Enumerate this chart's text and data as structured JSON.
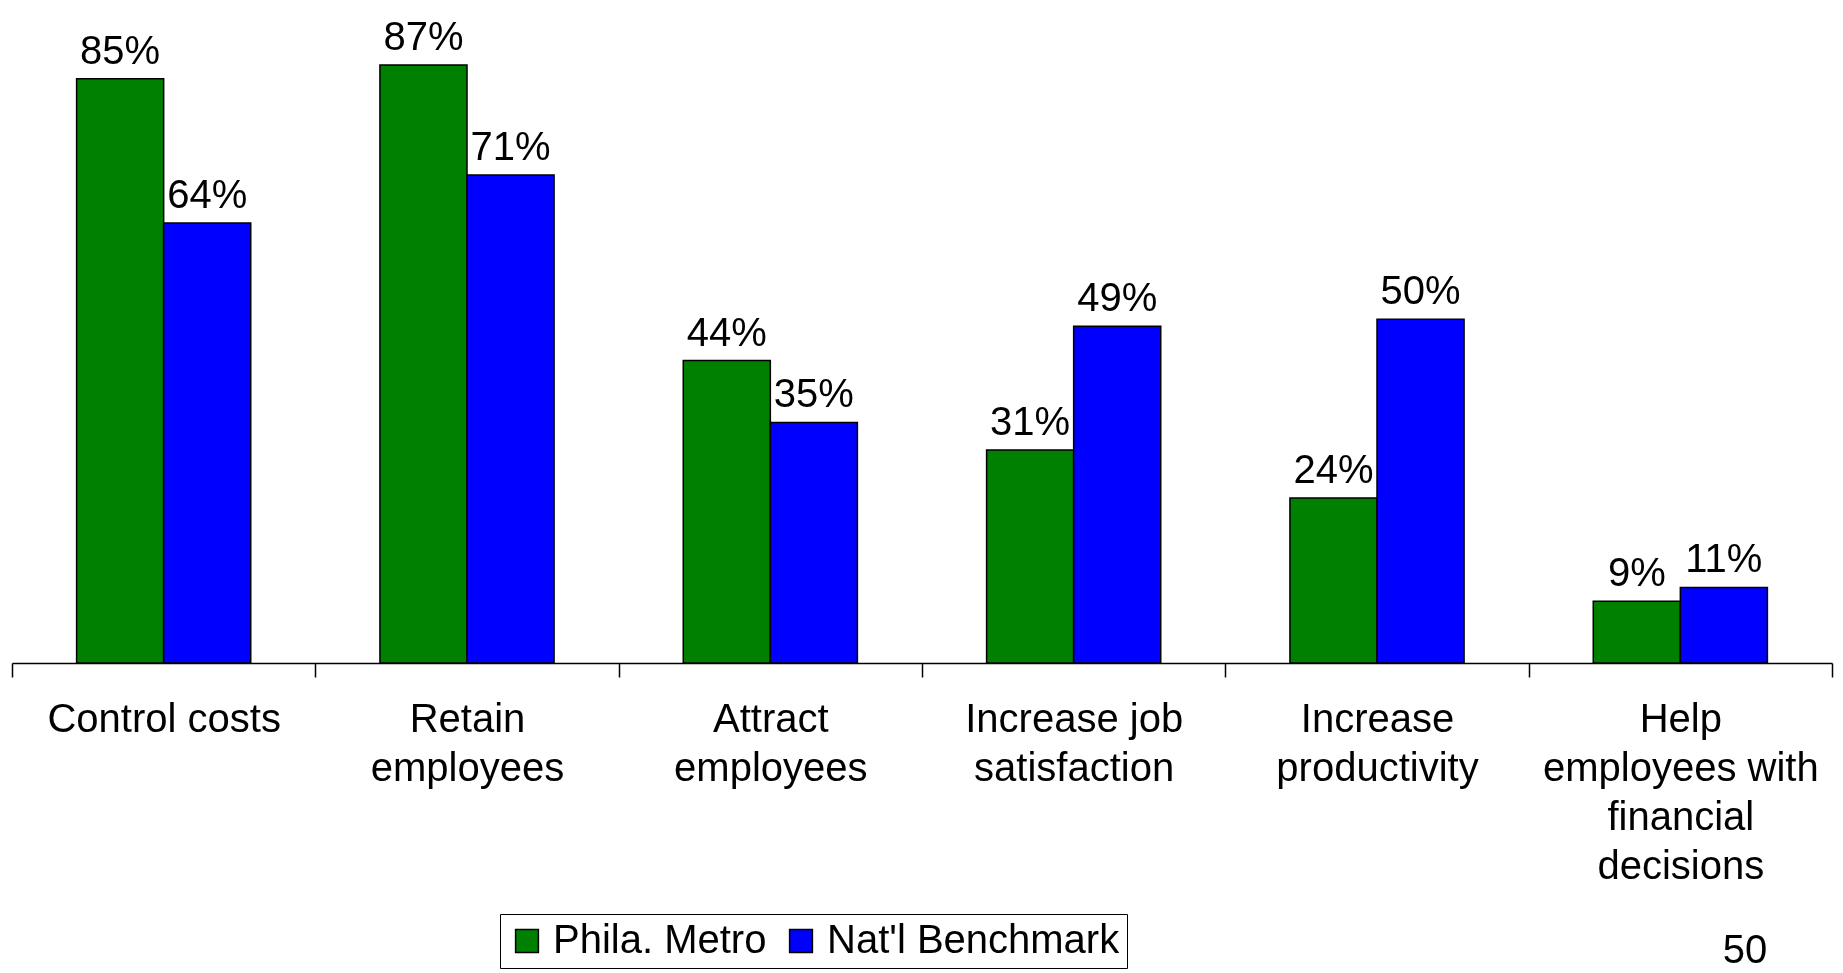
{
  "chart_data": {
    "type": "bar",
    "categories": [
      "Control costs",
      "Retain employees",
      "Attract employees",
      "Increase job satisfaction",
      "Increase productivity",
      "Help employees with financial decisions"
    ],
    "series": [
      {
        "name": "Phila. Metro",
        "color": "#008000",
        "values": [
          85,
          87,
          44,
          31,
          24,
          9
        ],
        "value_labels": [
          "85%",
          "87%",
          "44%",
          "31%",
          "24%",
          "9%"
        ]
      },
      {
        "name": "Nat'l Benchmark",
        "color": "#0000ff",
        "values": [
          64,
          71,
          35,
          49,
          50,
          11
        ],
        "value_labels": [
          "64%",
          "71%",
          "35%",
          "49%",
          "50%",
          "11%"
        ]
      }
    ],
    "legend": "bottom",
    "grid": false,
    "annotations": [
      "50"
    ]
  }
}
